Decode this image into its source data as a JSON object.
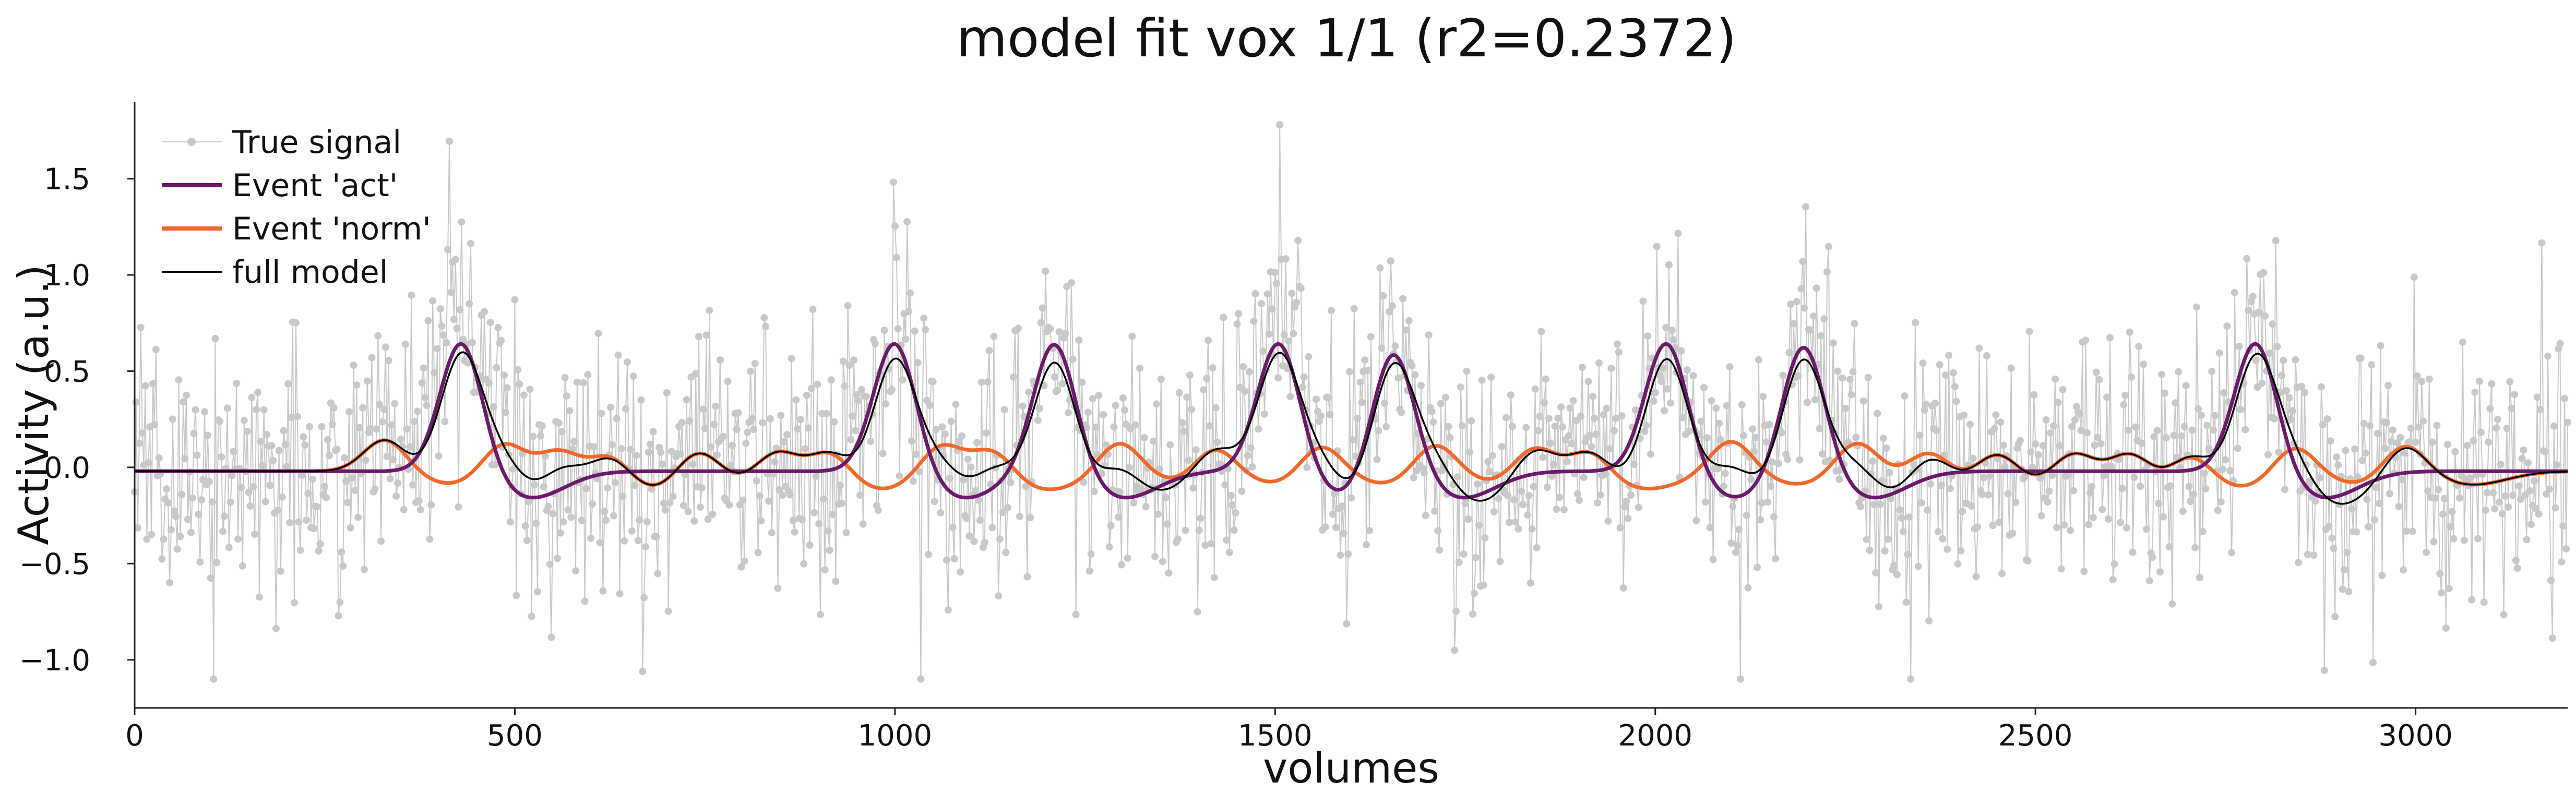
{
  "chart_data": {
    "type": "line",
    "title": "model fit vox 1/1 (r2=0.2372)",
    "xlabel": "volumes",
    "ylabel": "Activity (a.u.)",
    "xlim": [
      0,
      3200
    ],
    "ylim": [
      -1.25,
      1.9
    ],
    "x_ticks": [
      0,
      500,
      1000,
      1500,
      2000,
      2500,
      3000
    ],
    "y_ticks": [
      -1.0,
      -0.5,
      0.0,
      0.5,
      1.0,
      1.5
    ],
    "grid": false,
    "legend_position": "top-left",
    "act_events": [
      430,
      1000,
      1210,
      1505,
      1655,
      2015,
      2195,
      2790
    ],
    "norm_events": [
      330,
      485,
      560,
      625,
      740,
      845,
      915,
      1060,
      1130,
      1295,
      1420,
      1560,
      1710,
      1840,
      1915,
      2100,
      2265,
      2360,
      2450,
      2550,
      2625,
      2705,
      2840,
      2985
    ],
    "series": [
      {
        "name": "True signal",
        "color": "#c8c8c8",
        "kind": "line-markers",
        "noise_sd": 0.33,
        "seed": 7
      },
      {
        "name": "Event 'act'",
        "color": "#6b1a6b",
        "kind": "line",
        "peak": 0.68,
        "undershoot": -0.14
      },
      {
        "name": "Event 'norm'",
        "color": "#f0692a",
        "kind": "line",
        "peak": 0.17,
        "undershoot": -0.07
      },
      {
        "name": "full model",
        "color": "#000000",
        "kind": "line"
      }
    ]
  }
}
